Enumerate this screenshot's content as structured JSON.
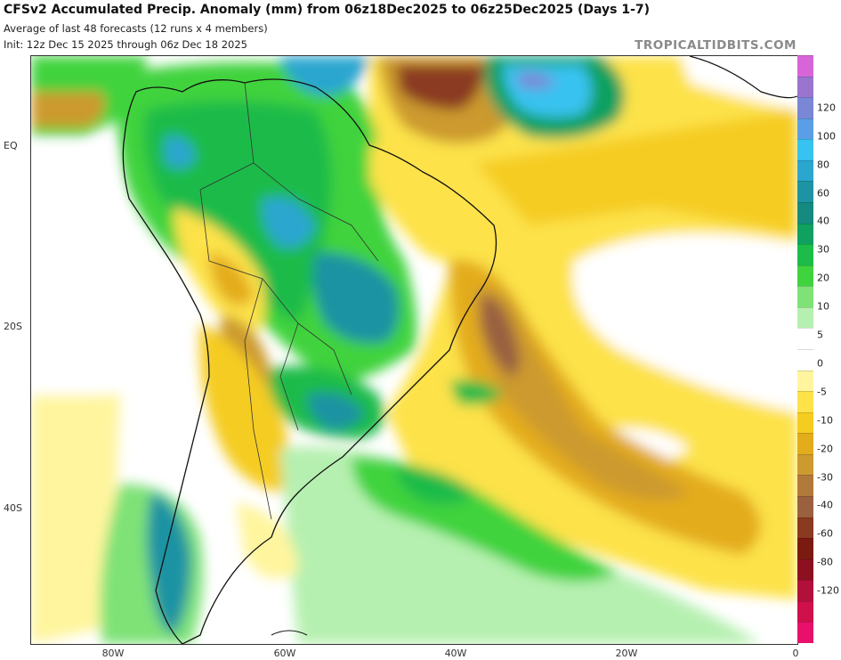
{
  "header": {
    "title": "CFSv2 Accumulated Precip. Anomaly (mm) from 06z18Dec2025 to 06z25Dec2025 (Days 1-7)",
    "subtitle": "Average of last 48 forecasts (12 runs x 4 members)",
    "init": "Init: 12z Dec 15 2025 through 06z Dec 18 2025",
    "brand": "TROPICALTIDBITS.COM"
  },
  "axes": {
    "lat_labels": [
      "EQ",
      "20S",
      "40S"
    ],
    "lon_labels": [
      "80W",
      "60W",
      "40W",
      "20W",
      "0"
    ]
  },
  "colorbar": {
    "labels": [
      "120",
      "100",
      "80",
      "60",
      "40",
      "30",
      "20",
      "10",
      "5",
      "0",
      "-5",
      "-10",
      "-20",
      "-30",
      "-40",
      "-60",
      "-80",
      "-120"
    ],
    "colors": [
      "#d865d8",
      "#9a75cf",
      "#7a86d6",
      "#5b9ee6",
      "#37c2f0",
      "#2aa6cf",
      "#1e93a3",
      "#148a80",
      "#10a060",
      "#1dbb4a",
      "#3fd33e",
      "#7ee277",
      "#b6f0b0",
      "#ffffff",
      "#ffffff",
      "#fff59e",
      "#fde24a",
      "#f5cc20",
      "#e3ac1c",
      "#cc9a2f",
      "#b27a3a",
      "#9a6040",
      "#8a3a20",
      "#7a1a10",
      "#8c1020",
      "#b0103a",
      "#d0104a",
      "#e8106a"
    ],
    "zero_band_color": "#ffffff"
  }
}
